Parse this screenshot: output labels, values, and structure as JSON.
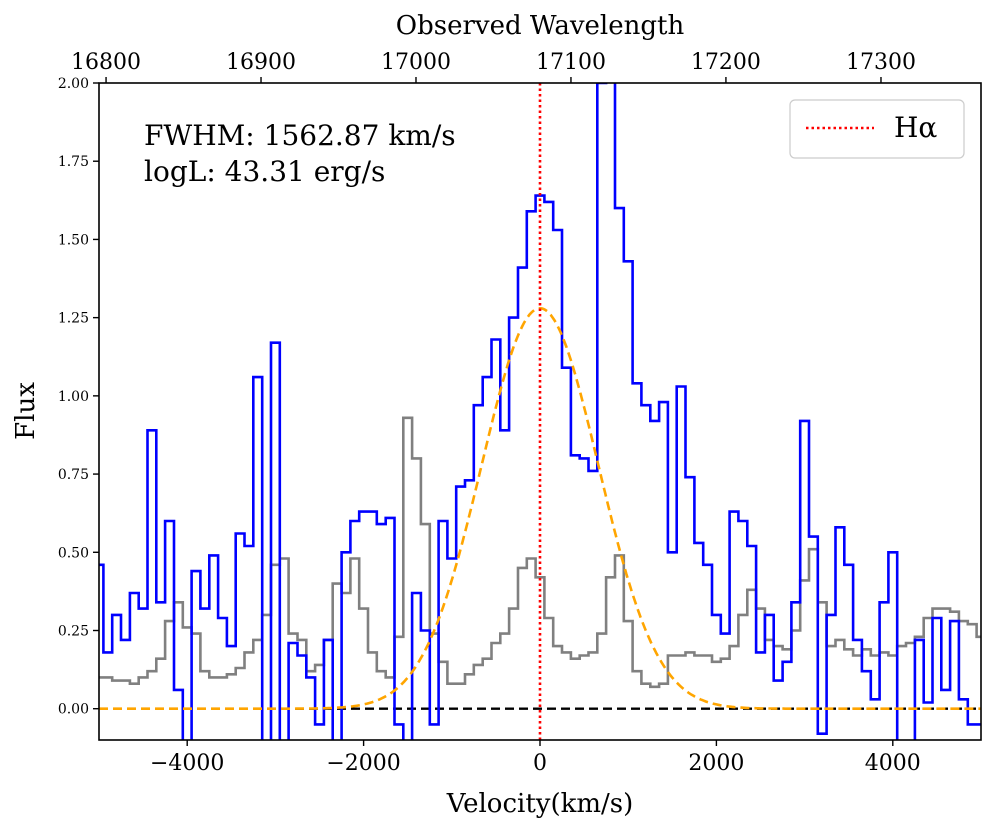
{
  "chart_data": {
    "type": "line",
    "title": "",
    "xlabel": "Velocity(km/s)",
    "ylabel": "Flux",
    "top_xlabel": "Observed Wavelength",
    "xlim": [
      -5000,
      5000
    ],
    "ylim": [
      -0.1,
      2.0
    ],
    "x_ticks": [
      "−4000",
      "−2000",
      "0",
      "2000",
      "4000"
    ],
    "x_tick_values": [
      -4000,
      -2000,
      0,
      2000,
      4000
    ],
    "y_ticks": [
      "0.00",
      "0.25",
      "0.50",
      "0.75",
      "1.00",
      "1.25",
      "1.50",
      "1.75",
      "2.00"
    ],
    "y_tick_values": [
      0.0,
      0.25,
      0.5,
      0.75,
      1.0,
      1.25,
      1.5,
      1.75,
      2.0
    ],
    "top_ticks": [
      "16800",
      "16900",
      "17000",
      "17100",
      "17200",
      "17300"
    ],
    "top_tick_velocities": [
      -4920,
      -3163,
      -1406,
      351,
      2108,
      3866
    ],
    "annotations": {
      "fwhm": "FWHM: 1562.87 km/s",
      "logl": "logL: 43.31 erg/s"
    },
    "legend": {
      "position": "top-right",
      "entries": [
        {
          "label": "Hα",
          "color": "#ff0000",
          "style": "dotted"
        }
      ]
    },
    "grid": false,
    "reference_lines": {
      "h_alpha_velocity": 0,
      "zero_flux": 0
    },
    "series": [
      {
        "color": "#0000ff",
        "style": "step",
        "x": [
          -5000,
          -4900,
          -4800,
          -4700,
          -4600,
          -4500,
          -4400,
          -4300,
          -4200,
          -4100,
          -4000,
          -3900,
          -3800,
          -3700,
          -3600,
          -3500,
          -3400,
          -3300,
          -3200,
          -3100,
          -3000,
          -2900,
          -2800,
          -2700,
          -2600,
          -2500,
          -2400,
          -2300,
          -2200,
          -2100,
          -2000,
          -1900,
          -1800,
          -1700,
          -1600,
          -1500,
          -1400,
          -1300,
          -1200,
          -1100,
          -1000,
          -900,
          -800,
          -700,
          -600,
          -500,
          -400,
          -300,
          -200,
          -100,
          0,
          100,
          200,
          300,
          400,
          500,
          600,
          700,
          800,
          900,
          1000,
          1100,
          1200,
          1300,
          1400,
          1500,
          1600,
          1700,
          1800,
          1900,
          2000,
          2100,
          2200,
          2300,
          2400,
          2500,
          2600,
          2700,
          2800,
          2900,
          3000,
          3100,
          3200,
          3300,
          3400,
          3500,
          3600,
          3700,
          3800,
          3900,
          4000,
          4100,
          4200,
          4300,
          4400,
          4500,
          4600,
          4700,
          4800,
          4900,
          5000
        ],
        "y": [
          0.46,
          0.18,
          0.3,
          0.22,
          0.37,
          0.32,
          0.89,
          0.34,
          0.6,
          0.06,
          -0.15,
          0.44,
          0.32,
          0.49,
          0.29,
          0.2,
          0.56,
          0.52,
          1.06,
          -0.15,
          1.17,
          -0.12,
          0.21,
          0.17,
          0.1,
          -0.05,
          0.22,
          -0.15,
          0.5,
          0.6,
          0.63,
          0.63,
          0.59,
          0.61,
          -0.05,
          -0.15,
          0.37,
          0.25,
          -0.05,
          0.6,
          0.48,
          0.71,
          0.73,
          0.97,
          1.06,
          1.18,
          0.89,
          1.25,
          1.41,
          1.59,
          1.64,
          1.62,
          1.53,
          1.09,
          0.81,
          0.8,
          0.76,
          2.0,
          2.1,
          1.6,
          1.43,
          1.04,
          0.97,
          0.92,
          0.98,
          0.5,
          1.03,
          0.74,
          0.53,
          0.46,
          0.3,
          0.24,
          0.63,
          0.6,
          0.52,
          0.18,
          0.3,
          0.09,
          0.15,
          0.34,
          0.92,
          0.55,
          -0.08,
          0.3,
          0.58,
          0.46,
          0.22,
          0.12,
          0.03,
          0.34,
          0.5,
          -0.15,
          -0.15,
          0.22,
          0.02,
          0.29,
          0.06,
          0.28,
          0.03,
          -0.05,
          -0.05
        ]
      },
      {
        "color": "#808080",
        "style": "step",
        "x": [
          -5000,
          -4900,
          -4800,
          -4700,
          -4600,
          -4500,
          -4400,
          -4300,
          -4200,
          -4100,
          -4000,
          -3900,
          -3800,
          -3700,
          -3600,
          -3500,
          -3400,
          -3300,
          -3200,
          -3100,
          -3000,
          -2900,
          -2800,
          -2700,
          -2600,
          -2500,
          -2400,
          -2300,
          -2200,
          -2100,
          -2000,
          -1900,
          -1800,
          -1700,
          -1600,
          -1500,
          -1400,
          -1300,
          -1200,
          -1100,
          -1000,
          -900,
          -800,
          -700,
          -600,
          -500,
          -400,
          -300,
          -200,
          -100,
          0,
          100,
          200,
          300,
          400,
          500,
          600,
          700,
          800,
          900,
          1000,
          1100,
          1200,
          1300,
          1400,
          1500,
          1600,
          1700,
          1800,
          1900,
          2000,
          2100,
          2200,
          2300,
          2400,
          2500,
          2600,
          2700,
          2800,
          2900,
          3000,
          3100,
          3200,
          3300,
          3400,
          3500,
          3600,
          3700,
          3800,
          3900,
          4000,
          4100,
          4200,
          4300,
          4400,
          4500,
          4600,
          4700,
          4800,
          4900,
          5000
        ],
        "y": [
          0.1,
          0.1,
          0.09,
          0.09,
          0.08,
          0.1,
          0.12,
          0.16,
          0.28,
          0.34,
          0.26,
          0.24,
          0.12,
          0.1,
          0.1,
          0.11,
          0.13,
          0.18,
          0.22,
          0.3,
          0.46,
          0.48,
          0.24,
          0.22,
          0.12,
          0.14,
          0.22,
          0.4,
          0.37,
          0.48,
          0.32,
          0.18,
          0.12,
          0.1,
          0.23,
          0.93,
          0.8,
          0.59,
          0.24,
          0.15,
          0.08,
          0.08,
          0.11,
          0.14,
          0.16,
          0.21,
          0.24,
          0.32,
          0.45,
          0.48,
          0.42,
          0.29,
          0.2,
          0.18,
          0.16,
          0.17,
          0.18,
          0.24,
          0.42,
          0.49,
          0.28,
          0.12,
          0.08,
          0.07,
          0.08,
          0.17,
          0.17,
          0.18,
          0.17,
          0.17,
          0.15,
          0.16,
          0.2,
          0.3,
          0.38,
          0.32,
          0.22,
          0.2,
          0.19,
          0.25,
          0.41,
          0.51,
          0.34,
          0.2,
          0.22,
          0.19,
          0.17,
          0.19,
          0.17,
          0.18,
          0.17,
          0.2,
          0.21,
          0.23,
          0.29,
          0.32,
          0.32,
          0.31,
          0.28,
          0.27,
          0.23
        ]
      }
    ],
    "gaussian_fit": {
      "color": "#ffa500",
      "style": "dashed",
      "peak": 1.28,
      "center": 0,
      "fwhm": 1562.87
    }
  }
}
